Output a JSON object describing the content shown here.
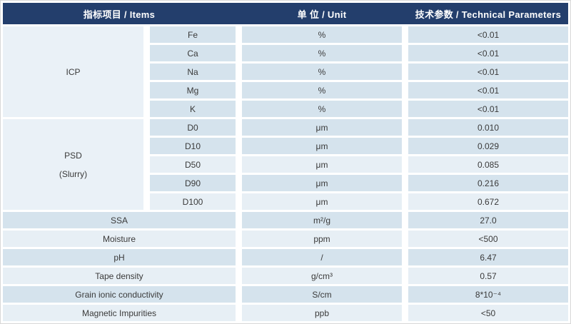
{
  "header": {
    "items": "指标项目  / Items",
    "unit": "单 位 / Unit",
    "params": "技术参数  / Technical Parameters"
  },
  "colors": {
    "header_bg": "#233e6c",
    "header_text": "#ffffff",
    "row_dark": "#d5e3ed",
    "row_light": "#e7eff5",
    "group_bg": "#eaf1f7",
    "cell_text": "#3a3a3a"
  },
  "groups": [
    {
      "name": "ICP",
      "name_line2": "",
      "rows": [
        {
          "item": "Fe",
          "unit": "%",
          "value": "<0.01",
          "shade": "dark"
        },
        {
          "item": "Ca",
          "unit": "%",
          "value": "<0.01",
          "shade": "dark"
        },
        {
          "item": "Na",
          "unit": "%",
          "value": "<0.01",
          "shade": "dark"
        },
        {
          "item": "Mg",
          "unit": "%",
          "value": "<0.01",
          "shade": "dark"
        },
        {
          "item": "K",
          "unit": "%",
          "value": "<0.01",
          "shade": "dark"
        }
      ]
    },
    {
      "name": "PSD",
      "name_line2": "(Slurry)",
      "rows": [
        {
          "item": "D0",
          "unit": "μm",
          "value": "0.010",
          "shade": "dark"
        },
        {
          "item": "D10",
          "unit": "μm",
          "value": "0.029",
          "shade": "dark"
        },
        {
          "item": "D50",
          "unit": "μm",
          "value": "0.085",
          "shade": "light"
        },
        {
          "item": "D90",
          "unit": "μm",
          "value": "0.216",
          "shade": "dark"
        },
        {
          "item": "D100",
          "unit": "μm",
          "value": "0.672",
          "shade": "light"
        }
      ]
    }
  ],
  "rows": [
    {
      "item": "SSA",
      "unit": "m²/g",
      "value": "27.0",
      "shade": "dark"
    },
    {
      "item": "Moisture",
      "unit": "ppm",
      "value": "<500",
      "shade": "light"
    },
    {
      "item": "pH",
      "unit": "/",
      "value": "6.47",
      "shade": "dark"
    },
    {
      "item": "Tape density",
      "unit": "g/cm³",
      "value": "0.57",
      "shade": "light"
    },
    {
      "item": "Grain ionic conductivity",
      "unit": "S/cm",
      "value": "8*10⁻⁴",
      "shade": "dark"
    },
    {
      "item": "Magnetic Impurities",
      "unit": "ppb",
      "value": "<50",
      "shade": "light"
    }
  ]
}
